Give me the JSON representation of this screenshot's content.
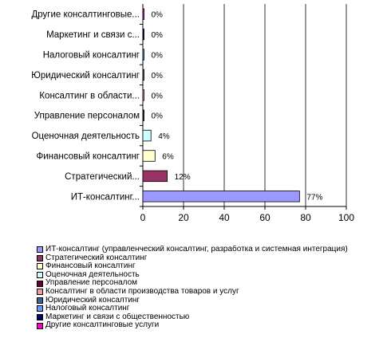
{
  "chart_data": {
    "type": "bar",
    "orientation": "horizontal",
    "categories": [
      "Другие консалтинговые...",
      "Маркетинг и связи с...",
      "Налоговый консалтинг",
      "Юридический консалтинг",
      "Консалтинг в области...",
      "Управление персоналом",
      "Оценочная деятельность",
      "Финансовый консалтинг",
      "Стратегический...",
      "ИТ-консалтинг..."
    ],
    "values": [
      0.3,
      0.3,
      0.3,
      0.5,
      0.3,
      0.5,
      4,
      6,
      12,
      77
    ],
    "data_labels": [
      "0%",
      "0%",
      "0%",
      "0%",
      "0%",
      "0%",
      "4%",
      "6%",
      "12%",
      "77%"
    ],
    "bar_colors": [
      "#ff00cc",
      "#000066",
      "#6699ff",
      "#336699",
      "#ff9999",
      "#660033",
      "#ccffff",
      "#ffffcc",
      "#993366",
      "#9999ff"
    ],
    "xlim": [
      0,
      100
    ],
    "x_ticks": [
      "0",
      "20",
      "40",
      "60",
      "80",
      "100"
    ],
    "grid": "vertical",
    "legend_position": "bottom",
    "legend": [
      {
        "label": "ИТ-консалтинг (управленческий консалтинг, разработка  и системная интеграция)",
        "color": "#9999ff"
      },
      {
        "label": "Стратегический  консалтинг",
        "color": "#993366"
      },
      {
        "label": "Финансовый консалтинг",
        "color": "#ffffcc"
      },
      {
        "label": "Оценочная  деятельность",
        "color": "#ccffff"
      },
      {
        "label": "Управление персоналом",
        "color": "#660033"
      },
      {
        "label": "Консалтинг в области производства товаров  и услуг",
        "color": "#ff9999"
      },
      {
        "label": "Юридический консалтинг",
        "color": "#336699"
      },
      {
        "label": "Налоговый  консалтинг",
        "color": "#6699ff"
      },
      {
        "label": "Маркетинг  и связи с общественностью",
        "color": "#000066"
      },
      {
        "label": "Другие консалтинговые  услуги",
        "color": "#ff00cc"
      }
    ]
  }
}
